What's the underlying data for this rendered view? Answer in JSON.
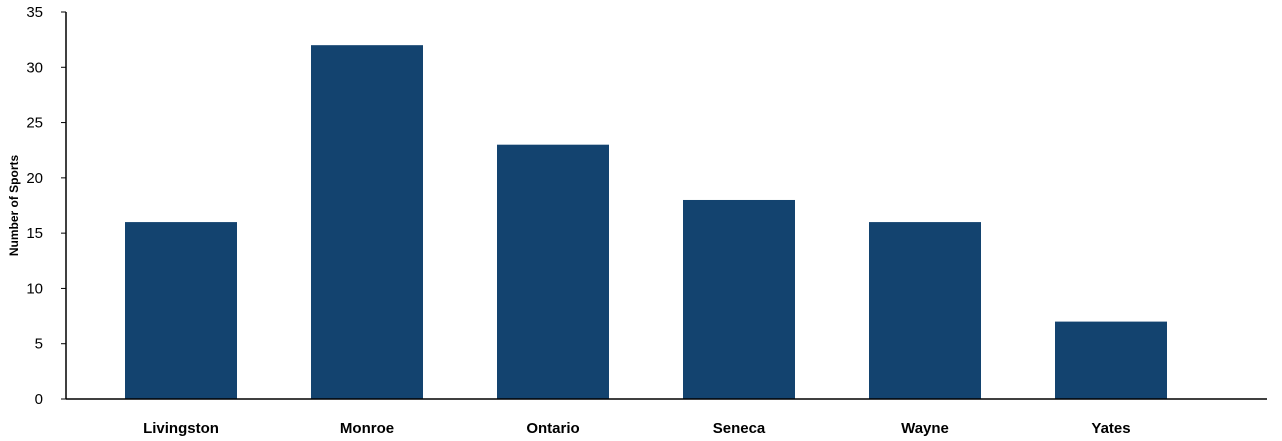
{
  "chart_data": {
    "type": "bar",
    "categories": [
      "Livingston",
      "Monroe",
      "Ontario",
      "Seneca",
      "Wayne",
      "Yates"
    ],
    "values": [
      16,
      32,
      23,
      18,
      16,
      7
    ],
    "title": "",
    "xlabel": "",
    "ylabel": "Number of Sports",
    "ylim": [
      0,
      35
    ],
    "yticks": [
      "0",
      "5",
      "10",
      "15",
      "20",
      "25",
      "30",
      "35"
    ],
    "grid": false,
    "bar_color": "#13436f"
  }
}
